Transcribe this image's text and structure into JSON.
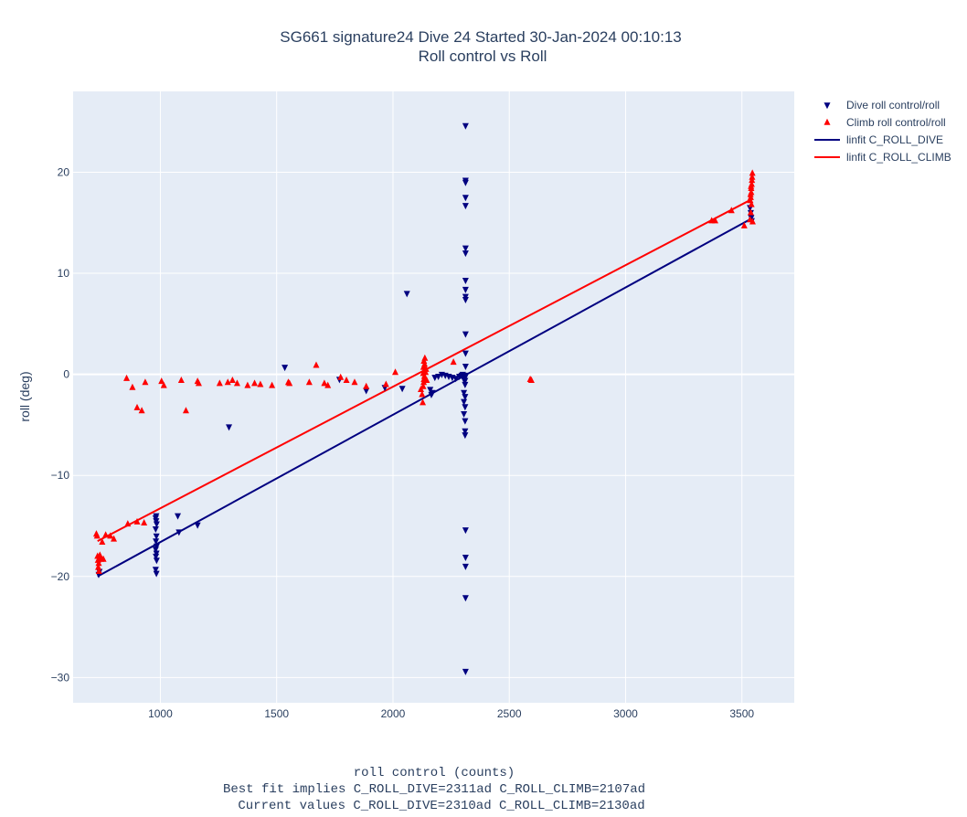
{
  "chart_data": {
    "type": "scatter",
    "title": "SG661 signature24 Dive 24 Started 30-Jan-2024 00:10:13",
    "subtitle": "Roll control vs Roll",
    "ylabel": "roll (deg)",
    "xlabel_lines": [
      "roll control (counts)",
      "Best fit implies C_ROLL_DIVE=2311ad C_ROLL_CLIMB=2107ad",
      "Current values C_ROLL_DIVE=2310ad C_ROLL_CLIMB=2130ad"
    ],
    "xlim": [
      625,
      3725
    ],
    "ylim": [
      -32.5,
      28
    ],
    "xticks": [
      1000,
      1500,
      2000,
      2500,
      3000,
      3500
    ],
    "yticks": [
      -30,
      -20,
      -10,
      0,
      10,
      20
    ],
    "ytick_labels": [
      "−30",
      "−20",
      "−10",
      "0",
      "10",
      "20"
    ],
    "grid": true,
    "legend_position": "right",
    "colors": {
      "dive": "#000080",
      "climb": "#ff0000",
      "plot_bg": "#e5ecf6",
      "grid": "#ffffff",
      "text": "#2a3f5f"
    },
    "series": [
      {
        "name": "Dive roll control/roll",
        "kind": "scatter",
        "marker": "triangle-down",
        "color": "#000080",
        "points": [
          [
            735,
            -19.8
          ],
          [
            738,
            -19.5
          ],
          [
            980,
            -14.2
          ],
          [
            982,
            -14.5
          ],
          [
            984,
            -14.8
          ],
          [
            980,
            -15.3
          ],
          [
            983,
            -16.0
          ],
          [
            981,
            -16.5
          ],
          [
            984,
            -17.0
          ],
          [
            980,
            -17.3
          ],
          [
            983,
            -17.7
          ],
          [
            981,
            -18.0
          ],
          [
            984,
            -18.4
          ],
          [
            980,
            -19.3
          ],
          [
            983,
            -19.7
          ],
          [
            982,
            -14.0
          ],
          [
            1075,
            -14.0
          ],
          [
            1080,
            -15.6
          ],
          [
            1160,
            -14.9
          ],
          [
            1295,
            -5.2
          ],
          [
            1535,
            0.7
          ],
          [
            1770,
            -0.5
          ],
          [
            1885,
            -1.6
          ],
          [
            1965,
            -1.3
          ],
          [
            2040,
            -1.4
          ],
          [
            2060,
            8.0
          ],
          [
            2160,
            -1.5
          ],
          [
            2165,
            -2.0
          ],
          [
            2170,
            -1.8
          ],
          [
            2180,
            -0.3
          ],
          [
            2195,
            -0.2
          ],
          [
            2210,
            0.0
          ],
          [
            2225,
            -0.1
          ],
          [
            2240,
            -0.2
          ],
          [
            2255,
            -0.3
          ],
          [
            2270,
            -0.4
          ],
          [
            2285,
            -0.2
          ],
          [
            2295,
            -0.1
          ],
          [
            2300,
            0.0
          ],
          [
            2305,
            -0.5
          ],
          [
            2305,
            -1.8
          ],
          [
            2305,
            -2.7
          ],
          [
            2305,
            -3.9
          ],
          [
            2310,
            -0.1
          ],
          [
            2310,
            -0.3
          ],
          [
            2310,
            -0.6
          ],
          [
            2310,
            -1.0
          ],
          [
            2310,
            -3.2
          ],
          [
            2310,
            -5.6
          ],
          [
            2310,
            -6.0
          ],
          [
            2310,
            -4.6
          ],
          [
            2310,
            -2.2
          ],
          [
            2312,
            24.6
          ],
          [
            2312,
            19.2
          ],
          [
            2312,
            19.0
          ],
          [
            2312,
            17.5
          ],
          [
            2312,
            16.7
          ],
          [
            2312,
            12.5
          ],
          [
            2312,
            12.0
          ],
          [
            2312,
            9.3
          ],
          [
            2312,
            8.4
          ],
          [
            2312,
            7.7
          ],
          [
            2312,
            7.4
          ],
          [
            2312,
            4.0
          ],
          [
            2312,
            2.1
          ],
          [
            2312,
            0.8
          ],
          [
            2312,
            -15.4
          ],
          [
            2312,
            -18.1
          ],
          [
            2312,
            -19.0
          ],
          [
            2312,
            -22.1
          ],
          [
            2312,
            -29.4
          ],
          [
            3535,
            16.5
          ],
          [
            3538,
            16.0
          ],
          [
            3540,
            15.5
          ],
          [
            3542,
            15.2
          ]
        ]
      },
      {
        "name": "Climb roll control/roll",
        "kind": "scatter",
        "marker": "triangle-up",
        "color": "#ff0000",
        "points": [
          [
            725,
            -15.8
          ],
          [
            728,
            -16.0
          ],
          [
            730,
            -18.0
          ],
          [
            732,
            -18.4
          ],
          [
            735,
            -18.7
          ],
          [
            733,
            -19.1
          ],
          [
            736,
            -19.5
          ],
          [
            738,
            -18.2
          ],
          [
            740,
            -17.9
          ],
          [
            745,
            -18.3
          ],
          [
            750,
            -16.6
          ],
          [
            755,
            -18.3
          ],
          [
            765,
            -15.9
          ],
          [
            785,
            -16.0
          ],
          [
            800,
            -16.3
          ],
          [
            855,
            -0.4
          ],
          [
            880,
            -1.3
          ],
          [
            900,
            -3.3
          ],
          [
            920,
            -3.6
          ],
          [
            935,
            -0.8
          ],
          [
            860,
            -14.8
          ],
          [
            900,
            -14.6
          ],
          [
            930,
            -14.7
          ],
          [
            1005,
            -0.7
          ],
          [
            1015,
            -1.1
          ],
          [
            1090,
            -0.6
          ],
          [
            1110,
            -3.6
          ],
          [
            1160,
            -0.7
          ],
          [
            1165,
            -0.9
          ],
          [
            1255,
            -0.9
          ],
          [
            1290,
            -0.8
          ],
          [
            1310,
            -0.6
          ],
          [
            1330,
            -0.9
          ],
          [
            1375,
            -1.1
          ],
          [
            1405,
            -0.9
          ],
          [
            1430,
            -1.0
          ],
          [
            1480,
            -1.1
          ],
          [
            1550,
            -0.8
          ],
          [
            1555,
            -0.9
          ],
          [
            1640,
            -0.8
          ],
          [
            1670,
            0.9
          ],
          [
            1705,
            -0.9
          ],
          [
            1720,
            -1.1
          ],
          [
            1775,
            -0.3
          ],
          [
            1800,
            -0.6
          ],
          [
            1835,
            -0.8
          ],
          [
            1885,
            -1.2
          ],
          [
            1970,
            -1.0
          ],
          [
            2010,
            0.2
          ],
          [
            2120,
            -1.5
          ],
          [
            2125,
            -2.0
          ],
          [
            2128,
            -2.8
          ],
          [
            2130,
            -1.2
          ],
          [
            2132,
            -0.8
          ],
          [
            2133,
            -0.5
          ],
          [
            2135,
            -0.2
          ],
          [
            2130,
            0.1
          ],
          [
            2134,
            0.4
          ],
          [
            2131,
            0.7
          ],
          [
            2136,
            1.0
          ],
          [
            2133,
            1.3
          ],
          [
            2137,
            1.6
          ],
          [
            2140,
            0.2
          ],
          [
            2142,
            0.5
          ],
          [
            2145,
            -0.6
          ],
          [
            2260,
            1.2
          ],
          [
            2590,
            -0.5
          ],
          [
            2595,
            -0.6
          ],
          [
            3370,
            15.2
          ],
          [
            3385,
            15.2
          ],
          [
            3455,
            16.2
          ],
          [
            3510,
            14.7
          ],
          [
            3535,
            15.3
          ],
          [
            3538,
            16.0
          ],
          [
            3538,
            17.5
          ],
          [
            3540,
            18.0
          ],
          [
            3540,
            18.4
          ],
          [
            3542,
            18.8
          ],
          [
            3536,
            17.2
          ],
          [
            3541,
            16.8
          ],
          [
            3543,
            19.2
          ],
          [
            3544,
            19.5
          ],
          [
            3545,
            19.9
          ],
          [
            3539,
            18.6
          ],
          [
            3546,
            15.1
          ],
          [
            3537,
            17.8
          ]
        ]
      },
      {
        "name": "linfit C_ROLL_DIVE",
        "kind": "line",
        "color": "#000080",
        "points": [
          [
            730,
            -20.0
          ],
          [
            3540,
            15.4
          ]
        ]
      },
      {
        "name": "linfit C_ROLL_CLIMB",
        "kind": "line",
        "color": "#ff0000",
        "points": [
          [
            730,
            -16.5
          ],
          [
            3540,
            17.3
          ]
        ]
      }
    ]
  }
}
